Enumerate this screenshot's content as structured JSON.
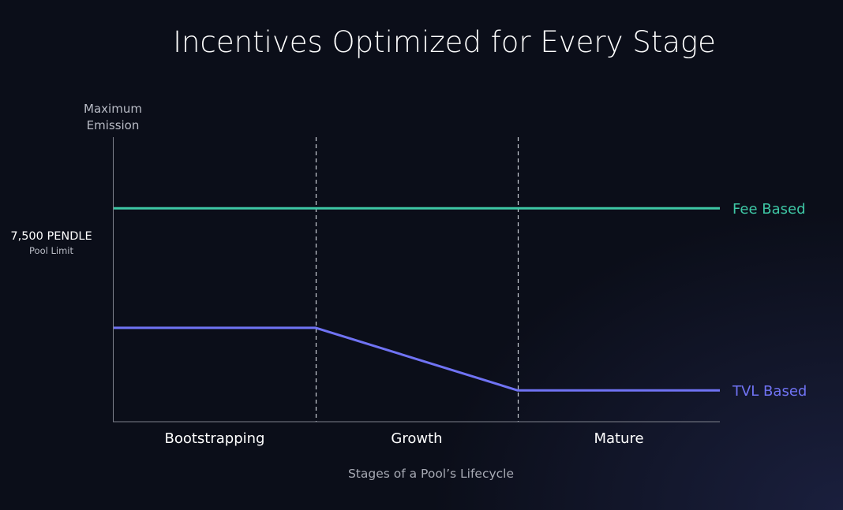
{
  "chart_data": {
    "type": "line",
    "title": "Incentives Optimized for Every Stage",
    "ylabel": "Maximum Emission",
    "xlabel": "Stages of a Pool’s Lifecycle",
    "xlim": [
      0,
      3
    ],
    "ylim": [
      0,
      10000
    ],
    "stages": [
      {
        "label": "Bootstrapping",
        "start": 0,
        "end": 1
      },
      {
        "label": "Growth",
        "start": 1,
        "end": 2
      },
      {
        "label": "Mature",
        "start": 2,
        "end": 3
      }
    ],
    "stage_boundaries": [
      1,
      2
    ],
    "reference_line": {
      "value": 7500,
      "label": "7,500 PENDLE",
      "sublabel": "Pool Limit"
    },
    "series": [
      {
        "name": "Fee Based",
        "color": "#3ec7a5",
        "x": [
          0,
          1,
          2,
          3
        ],
        "y": [
          7500,
          7500,
          7500,
          7500
        ]
      },
      {
        "name": "TVL Based",
        "color": "#7073f4",
        "x": [
          0,
          1,
          2,
          3
        ],
        "y": [
          3300,
          3300,
          1100,
          1100
        ]
      }
    ],
    "colors": {
      "axis": "#7d808b",
      "divider": "#c9ccd4"
    }
  }
}
